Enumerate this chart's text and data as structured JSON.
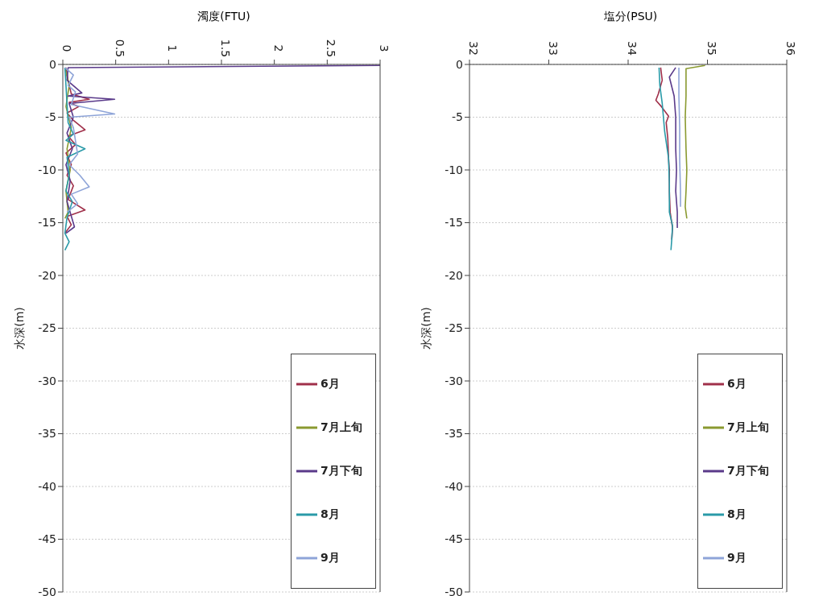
{
  "chart_data": [
    {
      "type": "line",
      "xlabel": "濁度(FTU)",
      "ylabel": "水深(m)",
      "xlim": [
        0,
        3
      ],
      "xticks": [
        0,
        0.5,
        1,
        1.5,
        2,
        2.5,
        3
      ],
      "ylim": [
        -50,
        0
      ],
      "yticks": [
        0,
        -5,
        -10,
        -15,
        -20,
        -25,
        -30,
        -35,
        -40,
        -45,
        -50
      ],
      "grid": "y",
      "legend": "bottom right",
      "marker": "none",
      "series": [
        {
          "name": "6月",
          "color": "#a0304a",
          "x": [
            0.03,
            0.05,
            0.08,
            0.25,
            0.06,
            0.15,
            0.04,
            0.1,
            0.21,
            0.05,
            0.12,
            0.03,
            0.08,
            0.04,
            0.1,
            0.05,
            0.21,
            0.04,
            0.08,
            0.02
          ],
          "values": [
            -0.3,
            -1.5,
            -2.8,
            -3.3,
            -3.6,
            -4.0,
            -4.6,
            -5.3,
            -6.2,
            -6.8,
            -7.6,
            -8.4,
            -9.5,
            -10.5,
            -11.5,
            -12.8,
            -13.8,
            -14.4,
            -15.2,
            -16.0
          ]
        },
        {
          "name": "7月上旬",
          "color": "#8a9a30",
          "x": [
            0.02,
            0.06,
            0.03,
            0.08,
            0.04,
            0.07,
            0.03,
            0.05,
            0.02
          ],
          "values": [
            -0.3,
            -2,
            -4,
            -6,
            -8,
            -10,
            -12,
            -14,
            -14.6
          ]
        },
        {
          "name": "7月下旬",
          "color": "#5a3a8a",
          "x": [
            3,
            0.05,
            0.04,
            0.18,
            0.05,
            0.49,
            0.06,
            0.1,
            0.04,
            0.09,
            0.03,
            0.07,
            0.04,
            0.11,
            0.03
          ],
          "values": [
            -0.1,
            -0.3,
            -1.5,
            -2.7,
            -3.0,
            -3.3,
            -3.7,
            -5.0,
            -6.5,
            -8.0,
            -9.5,
            -11,
            -13,
            -15.4,
            -16
          ]
        },
        {
          "name": "8月",
          "color": "#2a9aa8",
          "x": [
            0.02,
            0.03,
            0.05,
            0.1,
            0.03,
            0.21,
            0.04,
            0.06,
            0.03,
            0.09,
            0.04,
            0.02,
            0.06,
            0.02
          ],
          "values": [
            -0.3,
            -2,
            -5.5,
            -6.6,
            -7.2,
            -8.0,
            -8.8,
            -10.5,
            -12,
            -13,
            -14.5,
            -16,
            -16.8,
            -17.6
          ]
        },
        {
          "name": "9月",
          "color": "#8ea4d8",
          "x": [
            0.02,
            0.1,
            0.05,
            0.12,
            0.08,
            0.49,
            0.06,
            0.1,
            0.14,
            0.06,
            0.16,
            0.25,
            0.08,
            0.14,
            0.04
          ],
          "values": [
            -0.3,
            -1.0,
            -2,
            -2.6,
            -3.8,
            -4.7,
            -5.0,
            -6,
            -8.5,
            -9.5,
            -10.5,
            -11.6,
            -12.3,
            -13.2,
            -14.0
          ]
        }
      ]
    },
    {
      "type": "line",
      "xlabel": "塩分(PSU)",
      "ylabel": "水深(m)",
      "xlim": [
        32,
        36
      ],
      "xticks": [
        32,
        33,
        34,
        35,
        36
      ],
      "ylim": [
        -50,
        0
      ],
      "yticks": [
        0,
        -5,
        -10,
        -15,
        -20,
        -25,
        -30,
        -35,
        -40,
        -45,
        -50
      ],
      "grid": "y",
      "legend": "bottom right",
      "marker": "none",
      "series": [
        {
          "name": "6月",
          "color": "#a0304a",
          "x": [
            34.41,
            34.43,
            34.38,
            34.35,
            34.42,
            34.51,
            34.48,
            34.5,
            34.51,
            34.52,
            34.52,
            34.53,
            34.56,
            34.55
          ],
          "values": [
            -0.3,
            -1.5,
            -2.8,
            -3.4,
            -4.0,
            -4.9,
            -5.5,
            -7,
            -9,
            -10,
            -12,
            -14,
            -15.5,
            -16.6
          ]
        },
        {
          "name": "7月上旬",
          "color": "#8a9a30",
          "x": [
            34.97,
            34.73,
            34.73,
            34.72,
            34.73,
            34.74,
            34.73,
            34.72,
            34.74
          ],
          "values": [
            -0.1,
            -0.4,
            -3,
            -5,
            -8,
            -10,
            -12,
            -13.5,
            -14.6
          ]
        },
        {
          "name": "7月下旬",
          "color": "#5a3a8a",
          "x": [
            34.6,
            34.52,
            34.58,
            34.6,
            34.6,
            34.61,
            34.6,
            34.62,
            34.62
          ],
          "values": [
            -0.3,
            -1.2,
            -3,
            -5,
            -8,
            -10,
            -12,
            -14,
            -15.5
          ]
        },
        {
          "name": "8月",
          "color": "#2a9aa8",
          "x": [
            34.39,
            34.4,
            34.43,
            34.46,
            34.51,
            34.52,
            34.52,
            34.56,
            34.55,
            34.54
          ],
          "values": [
            -0.3,
            -2,
            -3.7,
            -6.3,
            -8.9,
            -11.4,
            -14,
            -15.3,
            -16.6,
            -17.6
          ]
        },
        {
          "name": "9月",
          "color": "#8ea4d8",
          "x": [
            34.64,
            34.64,
            34.65,
            34.65,
            34.66,
            34.66
          ],
          "values": [
            -0.3,
            -3,
            -6,
            -9,
            -12,
            -13.5
          ]
        }
      ]
    }
  ]
}
